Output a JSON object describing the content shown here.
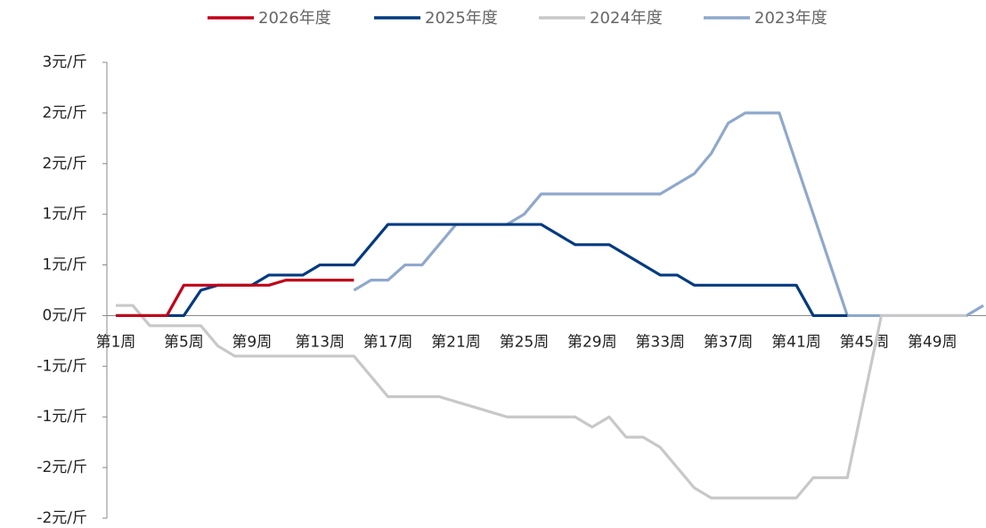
{
  "chart_data": {
    "type": "line",
    "categories": [
      "第1周",
      null,
      null,
      null,
      "第5周",
      null,
      null,
      null,
      "第9周",
      null,
      null,
      null,
      "第13周",
      null,
      null,
      null,
      "第17周",
      null,
      null,
      null,
      "第21周",
      null,
      null,
      null,
      "第25周",
      null,
      null,
      null,
      "第29周",
      null,
      null,
      null,
      "第33周",
      null,
      null,
      null,
      "第37周",
      null,
      null,
      null,
      "第41周",
      null,
      null,
      null,
      "第45周",
      null,
      null,
      null,
      "第49周",
      null,
      null,
      null
    ],
    "series": [
      {
        "name": "2026年度",
        "color": "#c00018",
        "values": [
          0,
          0,
          0,
          0,
          0.3,
          0.3,
          0.3,
          0.3,
          0.3,
          0.3,
          0.35,
          0.35,
          0.35,
          0.35,
          0.35,
          null,
          null,
          null,
          null,
          null,
          null,
          null,
          null,
          null,
          null,
          null,
          null,
          null,
          null,
          null,
          null,
          null,
          null,
          null,
          null,
          null,
          null,
          null,
          null,
          null,
          null,
          null,
          null,
          null,
          null,
          null,
          null,
          null,
          null,
          null,
          null,
          null
        ]
      },
      {
        "name": "2025年度",
        "color": "#003a80",
        "values": [
          0,
          0,
          0,
          0,
          0,
          0.25,
          0.3,
          0.3,
          0.3,
          0.4,
          0.4,
          0.4,
          0.5,
          0.5,
          0.5,
          0.7,
          0.9,
          0.9,
          0.9,
          0.9,
          0.9,
          0.9,
          0.9,
          0.9,
          0.9,
          0.9,
          0.8,
          0.7,
          0.7,
          0.7,
          0.6,
          0.5,
          0.4,
          0.4,
          0.3,
          0.3,
          0.3,
          0.3,
          0.3,
          0.3,
          0.3,
          0,
          0,
          0,
          null,
          null,
          null,
          null,
          null,
          null,
          null,
          null
        ]
      },
      {
        "name": "2024年度",
        "color": "#c8c8c8",
        "values": [
          0.1,
          0.1,
          -0.1,
          -0.1,
          -0.1,
          -0.1,
          -0.3,
          -0.4,
          -0.4,
          -0.4,
          -0.4,
          -0.4,
          -0.4,
          -0.4,
          -0.4,
          -0.6,
          -0.8,
          -0.8,
          -0.8,
          -0.8,
          -0.85,
          -0.9,
          -0.95,
          -1.0,
          -1.0,
          -1.0,
          -1.0,
          -1.0,
          -1.1,
          -1.0,
          -1.2,
          -1.2,
          -1.3,
          -1.5,
          -1.7,
          -1.8,
          -1.8,
          -1.8,
          -1.8,
          -1.8,
          -1.8,
          -1.6,
          -1.6,
          -1.6,
          -0.8,
          0,
          0,
          0,
          0,
          0,
          0,
          null
        ]
      },
      {
        "name": "2023年度",
        "color": "#8fa8cc",
        "values": [
          null,
          null,
          null,
          null,
          null,
          null,
          null,
          null,
          null,
          null,
          null,
          null,
          null,
          null,
          0.25,
          0.35,
          0.35,
          0.5,
          0.5,
          0.7,
          0.9,
          0.9,
          0.9,
          0.9,
          1.0,
          1.2,
          1.2,
          1.2,
          1.2,
          1.2,
          1.2,
          1.2,
          1.2,
          1.3,
          1.4,
          1.6,
          1.9,
          2.0,
          2.0,
          2.0,
          1.5,
          1.0,
          0.5,
          0,
          0,
          0,
          0,
          0,
          0,
          0,
          0,
          0.1
        ]
      }
    ],
    "ylim": [
      -2,
      2.5
    ],
    "yticks": [
      {
        "value": 2.5,
        "label": "3元/斤"
      },
      {
        "value": 2,
        "label": "2元/斤"
      },
      {
        "value": 1.5,
        "label": "2元/斤"
      },
      {
        "value": 1,
        "label": "1元/斤"
      },
      {
        "value": 0.5,
        "label": "1元/斤"
      },
      {
        "value": 0,
        "label": "0元/斤"
      },
      {
        "value": -0.5,
        "label": "-1元/斤"
      },
      {
        "value": -1,
        "label": "-1元/斤"
      },
      {
        "value": -1.5,
        "label": "-2元/斤"
      },
      {
        "value": -2,
        "label": "-2元/斤"
      }
    ],
    "legend": "top"
  }
}
